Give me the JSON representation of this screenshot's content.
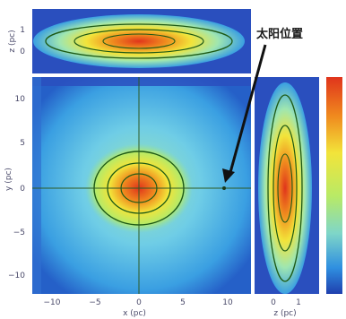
{
  "chart_data": [
    {
      "type": "heatmap",
      "panel": "main",
      "x_ticks": [
        "−10",
        "−5",
        "0",
        "5",
        "10"
      ],
      "y_ticks": [
        "10",
        "5",
        "0",
        "−5",
        "−10"
      ],
      "x_label": "x (pc)",
      "y_label": "y (pc)",
      "colormap": [
        "#1f3fae",
        "#2f8fe0",
        "#7fd6c8",
        "#b8ea66",
        "#f2e43a",
        "#f08a1e",
        "#e0341c"
      ],
      "grid": "crosshair at origin",
      "peak": {
        "x": 0,
        "y": 0
      },
      "annotation": "太阳位置",
      "annotation_marker": {
        "x": 5,
        "y": 0
      }
    },
    {
      "type": "heatmap",
      "panel": "top projection",
      "y_ticks": [
        "1",
        "0"
      ],
      "y_label": "z (pc)"
    },
    {
      "type": "heatmap",
      "panel": "right projection",
      "x_ticks": [
        "0",
        "1"
      ],
      "x_label": "z (pc)"
    }
  ]
}
